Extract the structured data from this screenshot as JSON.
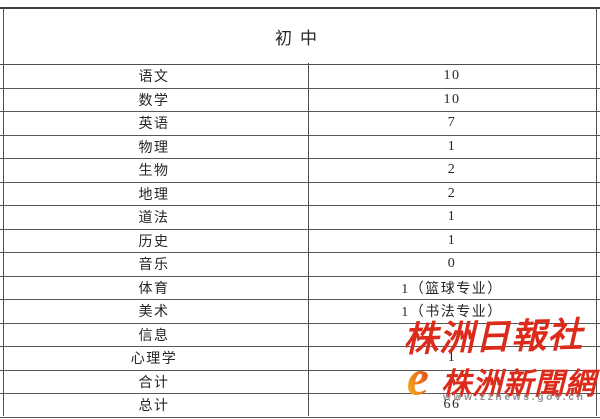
{
  "table": {
    "title": "初中",
    "rows": [
      {
        "subject": "语文",
        "value": "10"
      },
      {
        "subject": "数学",
        "value": "10"
      },
      {
        "subject": "英语",
        "value": "7"
      },
      {
        "subject": "物理",
        "value": "1"
      },
      {
        "subject": "生物",
        "value": "2"
      },
      {
        "subject": "地理",
        "value": "2"
      },
      {
        "subject": "道法",
        "value": "1"
      },
      {
        "subject": "历史",
        "value": "1"
      },
      {
        "subject": "音乐",
        "value": "0"
      },
      {
        "subject": "体育",
        "value": "1（篮球专业）"
      },
      {
        "subject": "美术",
        "value": "1（书法专业）"
      },
      {
        "subject": "信息",
        "value": ""
      },
      {
        "subject": "心理学",
        "value": "1"
      },
      {
        "subject": "合计",
        "value": ""
      },
      {
        "subject": "总计",
        "value": "66"
      }
    ]
  },
  "watermark": {
    "publisher_seal": "株洲日報社",
    "site_name": "株洲新聞網",
    "site_url": "www.zznews.gov.cn",
    "logo_icon": "zznews-e-swirl"
  },
  "colors": {
    "watermark_red": "#dc2b1a",
    "logo_orange": "#ee7d18",
    "logo_yellow": "#f6c51f",
    "border_gray": "#4f4f4f",
    "url_gray": "#909090",
    "text": "#262626"
  }
}
